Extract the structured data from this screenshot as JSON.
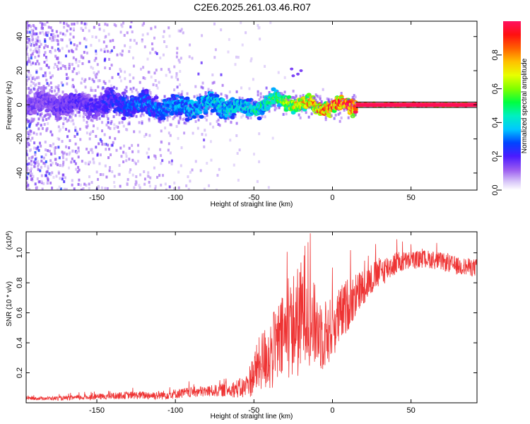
{
  "title": "C2E6.2025.261.03.46.R07",
  "colorbar": {
    "label": "Normalized spectral amplitude",
    "ticks": [
      "0.0",
      "0.2",
      "0.4",
      "0.6",
      "0.8"
    ],
    "tick_values": [
      0.0,
      0.2,
      0.4,
      0.6,
      0.8
    ],
    "range": [
      0,
      1
    ]
  },
  "chart_data": [
    {
      "type": "heatmap",
      "title": "",
      "xlabel": "Height of straight line (km)",
      "ylabel": "Frequency (Hz)",
      "xlim": [
        -195,
        92
      ],
      "ylim": [
        -50,
        49
      ],
      "xticks": [
        -150,
        -100,
        -50,
        0,
        50
      ],
      "xtick_labels": [
        "-150",
        "-100",
        "-50",
        "0",
        "50"
      ],
      "yticks": [
        -40,
        -20,
        0,
        20,
        40
      ],
      "ytick_labels": [
        "-40",
        "-20",
        "0",
        "20",
        "40"
      ],
      "signal_band": {
        "description_points": [
          {
            "x": -190,
            "center_hz": 1,
            "amplitude": 0.15
          },
          {
            "x": -150,
            "center_hz": 0,
            "amplitude": 0.2
          },
          {
            "x": -130,
            "center_hz": 1,
            "amplitude": 0.28
          },
          {
            "x": -100,
            "center_hz": -2,
            "amplitude": 0.32
          },
          {
            "x": -75,
            "center_hz": 1,
            "amplitude": 0.38
          },
          {
            "x": -55,
            "center_hz": -3,
            "amplitude": 0.4
          },
          {
            "x": -35,
            "center_hz": 3,
            "amplitude": 0.5
          },
          {
            "x": -20,
            "center_hz": 0,
            "amplitude": 0.75
          },
          {
            "x": 0,
            "center_hz": -1,
            "amplitude": 0.85
          },
          {
            "x": 15,
            "center_hz": 0,
            "amplitude": 0.95
          },
          {
            "x": 50,
            "center_hz": 0,
            "amplitude": 1.0
          },
          {
            "x": 90,
            "center_hz": 0,
            "amplitude": 0.95
          }
        ]
      }
    },
    {
      "type": "line",
      "title": "",
      "xlabel": "Height of straight line (km)",
      "ylabel": "SNR (10 * v/v)",
      "scale_label": "(x10",
      "scale_exponent": "4",
      "scale_suffix": ")",
      "xlim": [
        -195,
        92
      ],
      "ylim": [
        0,
        1.14
      ],
      "xticks": [
        -150,
        -100,
        -50,
        0,
        50
      ],
      "xtick_labels": [
        "-150",
        "-100",
        "-50",
        "0",
        "50"
      ],
      "yticks": [
        0.2,
        0.4,
        0.6,
        0.8,
        1.0
      ],
      "ytick_labels": [
        "0.2",
        "0.4",
        "0.6",
        "0.8",
        "1.0"
      ],
      "color": "#ee3333",
      "series": [
        {
          "name": "SNR",
          "x": [
            -195,
            -170,
            -150,
            -130,
            -110,
            -90,
            -75,
            -65,
            -55,
            -50,
            -45,
            -40,
            -35,
            -30,
            -25,
            -20,
            -17,
            -15,
            -10,
            -5,
            0,
            5,
            10,
            20,
            30,
            40,
            50,
            60,
            70,
            80,
            92
          ],
          "y": [
            0.03,
            0.03,
            0.04,
            0.05,
            0.05,
            0.07,
            0.08,
            0.09,
            0.1,
            0.2,
            0.28,
            0.32,
            0.38,
            0.45,
            0.52,
            0.55,
            0.7,
            0.55,
            0.5,
            0.45,
            0.5,
            0.58,
            0.66,
            0.78,
            0.87,
            0.93,
            0.95,
            0.96,
            0.94,
            0.91,
            0.9
          ],
          "noise_amplitude": [
            0.01,
            0.015,
            0.02,
            0.025,
            0.03,
            0.035,
            0.04,
            0.05,
            0.08,
            0.15,
            0.2,
            0.25,
            0.28,
            0.3,
            0.35,
            0.4,
            0.4,
            0.3,
            0.28,
            0.25,
            0.2,
            0.2,
            0.18,
            0.12,
            0.1,
            0.08,
            0.06,
            0.06,
            0.06,
            0.06,
            0.06
          ]
        }
      ]
    }
  ]
}
